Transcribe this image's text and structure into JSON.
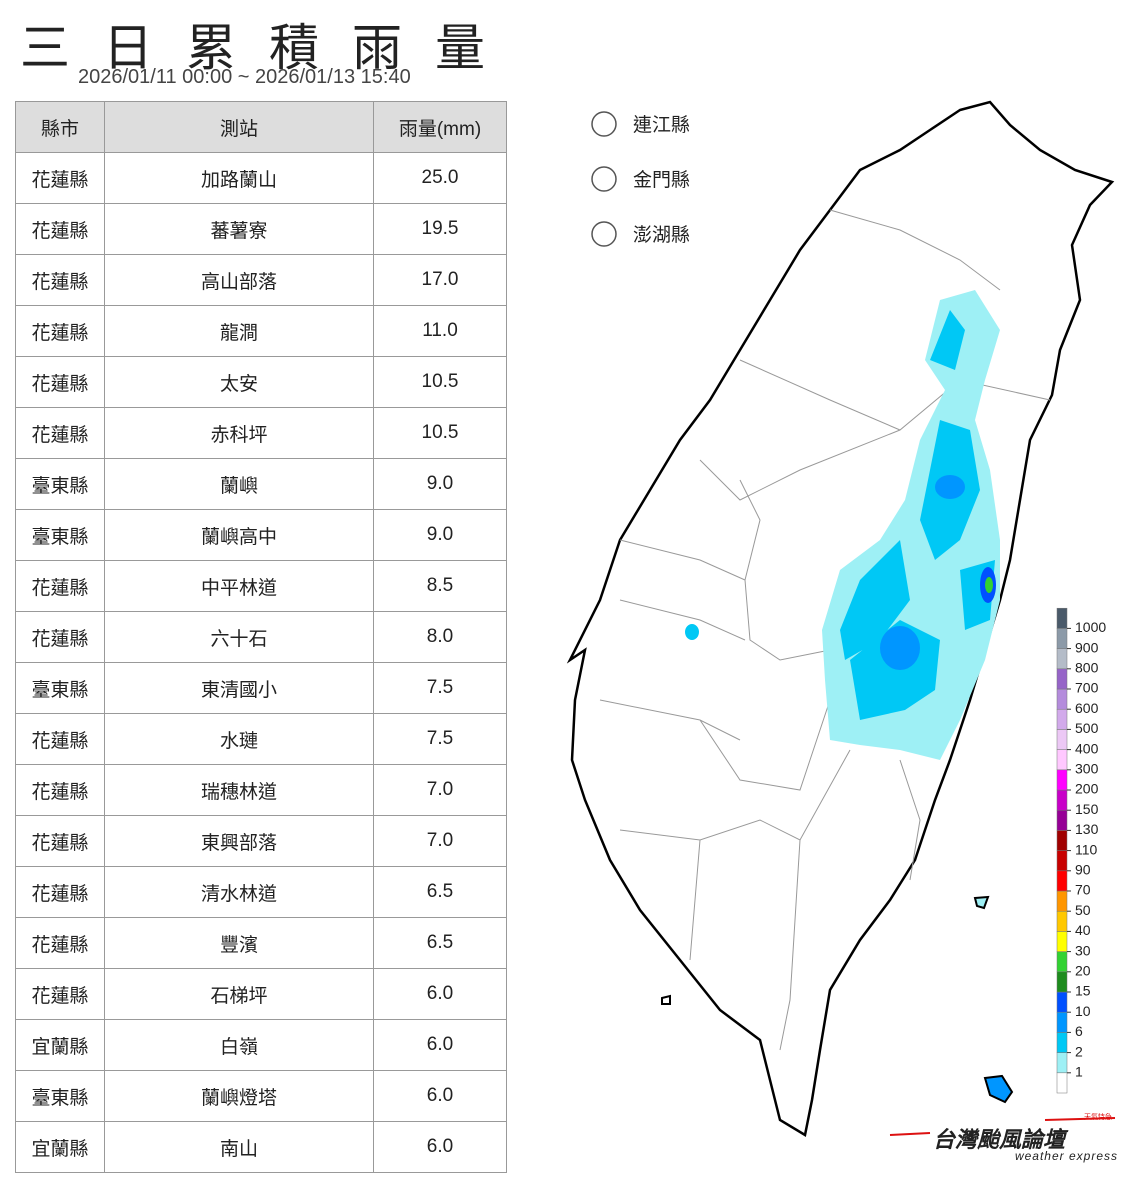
{
  "header": {
    "title": "三日累積雨量",
    "subtitle": "2026/01/11 00:00 ~ 2026/01/13 15:40"
  },
  "table": {
    "columns": [
      "縣市",
      "測站",
      "雨量(mm)"
    ],
    "rows": [
      [
        "花蓮縣",
        "加路蘭山",
        "25.0"
      ],
      [
        "花蓮縣",
        "蕃薯寮",
        "19.5"
      ],
      [
        "花蓮縣",
        "高山部落",
        "17.0"
      ],
      [
        "花蓮縣",
        "龍澗",
        "11.0"
      ],
      [
        "花蓮縣",
        "太安",
        "10.5"
      ],
      [
        "花蓮縣",
        "赤科坪",
        "10.5"
      ],
      [
        "臺東縣",
        "蘭嶼",
        "9.0"
      ],
      [
        "臺東縣",
        "蘭嶼高中",
        "9.0"
      ],
      [
        "花蓮縣",
        "中平林道",
        "8.5"
      ],
      [
        "花蓮縣",
        "六十石",
        "8.0"
      ],
      [
        "臺東縣",
        "東清國小",
        "7.5"
      ],
      [
        "花蓮縣",
        "水璉",
        "7.5"
      ],
      [
        "花蓮縣",
        "瑞穗林道",
        "7.0"
      ],
      [
        "花蓮縣",
        "東興部落",
        "7.0"
      ],
      [
        "花蓮縣",
        "清水林道",
        "6.5"
      ],
      [
        "花蓮縣",
        "豐濱",
        "6.5"
      ],
      [
        "花蓮縣",
        "石梯坪",
        "6.0"
      ],
      [
        "宜蘭縣",
        "白嶺",
        "6.0"
      ],
      [
        "臺東縣",
        "蘭嶼燈塔",
        "6.0"
      ],
      [
        "宜蘭縣",
        "南山",
        "6.0"
      ]
    ]
  },
  "islands": [
    "連江縣",
    "金門縣",
    "澎湖縣"
  ],
  "legend": {
    "ticks": [
      1,
      2,
      6,
      10,
      15,
      20,
      30,
      40,
      50,
      70,
      90,
      110,
      130,
      150,
      200,
      300,
      400,
      500,
      600,
      700,
      800,
      900,
      1000
    ],
    "colors": [
      "#ffffff",
      "#9ef0f5",
      "#00c8f5",
      "#0096ff",
      "#0050ff",
      "#1e8c1e",
      "#32d232",
      "#ffff00",
      "#ffc800",
      "#ff9600",
      "#ff0000",
      "#c80000",
      "#a00000",
      "#960096",
      "#c800c8",
      "#ff00ff",
      "#ffc8ff",
      "#ecc8f5",
      "#d2aaeb",
      "#b48cdc",
      "#9664c8",
      "#b4bcc8",
      "#8c9aa8",
      "#4a5a6a"
    ]
  },
  "logo": {
    "tag": "天氣特急",
    "name": "台灣颱風論壇",
    "subtitle": "weather express"
  }
}
